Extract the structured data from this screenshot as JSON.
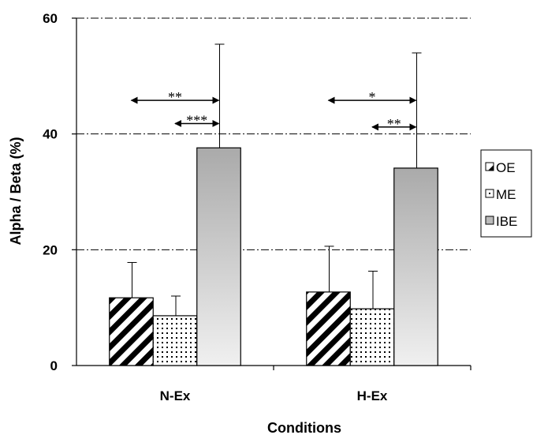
{
  "chart_data": {
    "type": "bar",
    "xlabel": "Conditions",
    "ylabel": "Alpha / Beta (%)",
    "ylim": [
      0,
      60
    ],
    "yticks": [
      "0",
      "20",
      "40",
      "60"
    ],
    "categories": [
      "N-Ex",
      "H-Ex"
    ],
    "grid": "dash-dot horizontal at 20, 40, 60",
    "legend_position": "right",
    "series": [
      {
        "name": "OE",
        "values": [
          11.7,
          12.7
        ],
        "errors": [
          17.8,
          20.6
        ],
        "pattern": "diagonal-stripes"
      },
      {
        "name": "ME",
        "values": [
          8.6,
          9.8
        ],
        "errors": [
          12.0,
          16.3
        ],
        "pattern": "dots"
      },
      {
        "name": "IBE",
        "values": [
          37.6,
          34.1
        ],
        "errors": [
          55.5,
          54.0
        ],
        "pattern": "gray-gradient"
      }
    ],
    "significance": [
      {
        "category": "N-Ex",
        "from": "OE",
        "to": "IBE",
        "label": "**",
        "y": 45.8
      },
      {
        "category": "N-Ex",
        "from": "ME",
        "to": "IBE",
        "label": "***",
        "y": 41.8
      },
      {
        "category": "H-Ex",
        "from": "OE",
        "to": "IBE",
        "label": "*",
        "y": 45.8
      },
      {
        "category": "H-Ex",
        "from": "ME",
        "to": "IBE",
        "label": "**",
        "y": 41.2
      }
    ]
  }
}
